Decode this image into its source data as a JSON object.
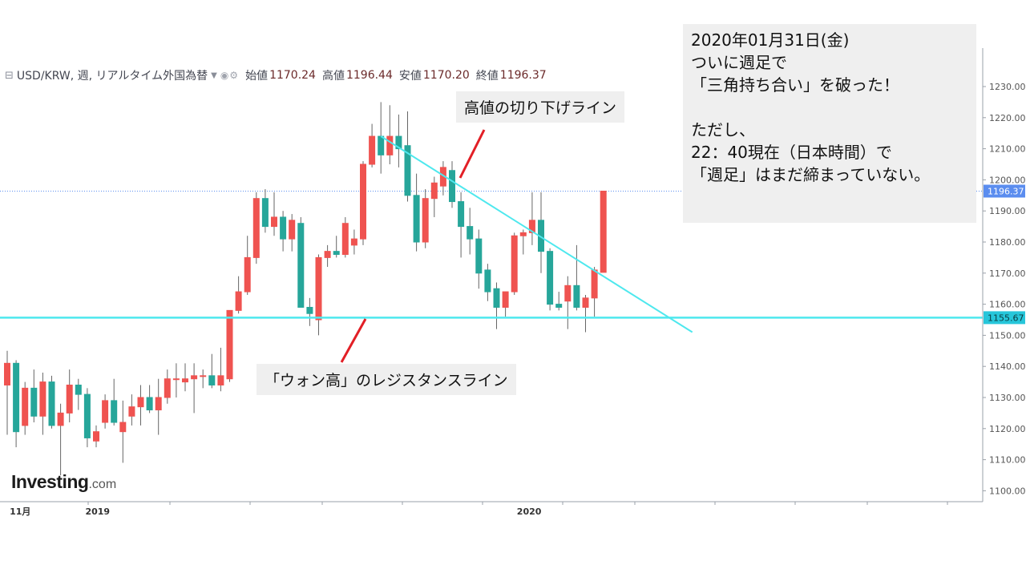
{
  "header": {
    "symbol_line": "USD/KRW, 週, リアルタイム外国為替",
    "ohlc": [
      {
        "label": "始値",
        "value": "1170.24"
      },
      {
        "label": "高値",
        "value": "1196.44"
      },
      {
        "label": "安値",
        "value": "1170.20"
      },
      {
        "label": "終値",
        "value": "1196.37"
      }
    ]
  },
  "annotations": {
    "downtrend_label": "高値の切り下げライン",
    "support_label": "「ウォン高」のレジスタンスライン"
  },
  "info_box": {
    "lines": [
      "2020年01月31日(金)",
      "ついに週足で",
      "「三角持ち合い」を破った！",
      "",
      "ただし、",
      "22：40現在（日本時間）で",
      "「週足」はまだ締まっていない。"
    ]
  },
  "logo": {
    "main": "Investing",
    "suffix": ".com"
  },
  "colors": {
    "up": "#ef5350",
    "down": "#26a69a",
    "trendline": "#4ee8ee",
    "horizontal_line": "#4ee8ee",
    "annotation_pointer": "#e21f26",
    "price_marker_current": "#5b8def",
    "price_marker_level": "#26c6da"
  },
  "chart_data": {
    "type": "candlestick",
    "symbol": "USD/KRW",
    "interval": "週",
    "ylim": [
      1095,
      1236
    ],
    "y_ticks": [
      1100,
      1110,
      1120,
      1130,
      1140,
      1150,
      1160,
      1170,
      1180,
      1190,
      1200,
      1210,
      1220,
      1230
    ],
    "x_tick_labels": [
      {
        "label": "11月",
        "index": 1
      },
      {
        "label": "2019",
        "index": 9.5
      },
      {
        "label": "2020",
        "index": 58
      }
    ],
    "current_price": "1196.37",
    "horizontal_level": "1155.67",
    "candles": [
      {
        "o": 1134,
        "h": 1145,
        "l": 1118,
        "c": 1141
      },
      {
        "o": 1141,
        "h": 1142,
        "l": 1114,
        "c": 1119
      },
      {
        "o": 1121,
        "h": 1135,
        "l": 1118,
        "c": 1133
      },
      {
        "o": 1133,
        "h": 1139,
        "l": 1122,
        "c": 1124
      },
      {
        "o": 1124,
        "h": 1138,
        "l": 1118,
        "c": 1135
      },
      {
        "o": 1135,
        "h": 1137,
        "l": 1120,
        "c": 1121
      },
      {
        "o": 1121,
        "h": 1128,
        "l": 1105,
        "c": 1125
      },
      {
        "o": 1125,
        "h": 1139,
        "l": 1122,
        "c": 1134
      },
      {
        "o": 1134,
        "h": 1136,
        "l": 1126,
        "c": 1131
      },
      {
        "o": 1131,
        "h": 1133,
        "l": 1114,
        "c": 1117
      },
      {
        "o": 1116,
        "h": 1121,
        "l": 1114,
        "c": 1119
      },
      {
        "o": 1122,
        "h": 1131,
        "l": 1120,
        "c": 1129
      },
      {
        "o": 1129,
        "h": 1136,
        "l": 1121,
        "c": 1122
      },
      {
        "o": 1119,
        "h": 1129,
        "l": 1109,
        "c": 1122
      },
      {
        "o": 1124,
        "h": 1131,
        "l": 1121,
        "c": 1127
      },
      {
        "o": 1127,
        "h": 1134,
        "l": 1121,
        "c": 1130
      },
      {
        "o": 1130,
        "h": 1134,
        "l": 1125,
        "c": 1126
      },
      {
        "o": 1126,
        "h": 1136,
        "l": 1118,
        "c": 1130
      },
      {
        "o": 1130,
        "h": 1139,
        "l": 1128,
        "c": 1136
      },
      {
        "o": 1136,
        "h": 1141,
        "l": 1130,
        "c": 1136
      },
      {
        "o": 1135,
        "h": 1141,
        "l": 1132,
        "c": 1136
      },
      {
        "o": 1136,
        "h": 1141,
        "l": 1125,
        "c": 1137
      },
      {
        "o": 1137,
        "h": 1139,
        "l": 1133,
        "c": 1137
      },
      {
        "o": 1137,
        "h": 1144,
        "l": 1133,
        "c": 1134
      },
      {
        "o": 1134,
        "h": 1146,
        "l": 1132,
        "c": 1137
      },
      {
        "o": 1136,
        "h": 1158,
        "l": 1135,
        "c": 1158
      },
      {
        "o": 1158,
        "h": 1169,
        "l": 1157,
        "c": 1164
      },
      {
        "o": 1164,
        "h": 1182,
        "l": 1163,
        "c": 1175
      },
      {
        "o": 1175,
        "h": 1196,
        "l": 1173,
        "c": 1194
      },
      {
        "o": 1194,
        "h": 1197,
        "l": 1183,
        "c": 1185
      },
      {
        "o": 1185,
        "h": 1196,
        "l": 1182,
        "c": 1188
      },
      {
        "o": 1188,
        "h": 1190,
        "l": 1177,
        "c": 1181
      },
      {
        "o": 1181,
        "h": 1189,
        "l": 1177,
        "c": 1187
      },
      {
        "o": 1186,
        "h": 1188,
        "l": 1159,
        "c": 1159
      },
      {
        "o": 1159,
        "h": 1162,
        "l": 1153,
        "c": 1157
      },
      {
        "o": 1155,
        "h": 1176,
        "l": 1150,
        "c": 1175
      },
      {
        "o": 1175,
        "h": 1179,
        "l": 1172,
        "c": 1177
      },
      {
        "o": 1177,
        "h": 1182,
        "l": 1175,
        "c": 1176
      },
      {
        "o": 1176,
        "h": 1188,
        "l": 1175,
        "c": 1186
      },
      {
        "o": 1179,
        "h": 1184,
        "l": 1176,
        "c": 1181
      },
      {
        "o": 1181,
        "h": 1206,
        "l": 1179,
        "c": 1205
      },
      {
        "o": 1205,
        "h": 1218,
        "l": 1204,
        "c": 1214
      },
      {
        "o": 1214,
        "h": 1225,
        "l": 1202,
        "c": 1208
      },
      {
        "o": 1208,
        "h": 1224,
        "l": 1205,
        "c": 1214
      },
      {
        "o": 1214,
        "h": 1221,
        "l": 1204,
        "c": 1210
      },
      {
        "o": 1211,
        "h": 1222,
        "l": 1193,
        "c": 1195
      },
      {
        "o": 1195,
        "h": 1202,
        "l": 1177,
        "c": 1180
      },
      {
        "o": 1180,
        "h": 1197,
        "l": 1178,
        "c": 1194
      },
      {
        "o": 1194,
        "h": 1201,
        "l": 1188,
        "c": 1199
      },
      {
        "o": 1198,
        "h": 1206,
        "l": 1195,
        "c": 1204
      },
      {
        "o": 1203,
        "h": 1206,
        "l": 1191,
        "c": 1193
      },
      {
        "o": 1193,
        "h": 1196,
        "l": 1175,
        "c": 1185
      },
      {
        "o": 1185,
        "h": 1191,
        "l": 1176,
        "c": 1181
      },
      {
        "o": 1181,
        "h": 1184,
        "l": 1165,
        "c": 1170
      },
      {
        "o": 1171,
        "h": 1173,
        "l": 1161,
        "c": 1164
      },
      {
        "o": 1165,
        "h": 1167,
        "l": 1152,
        "c": 1159
      },
      {
        "o": 1159,
        "h": 1164,
        "l": 1156,
        "c": 1164
      },
      {
        "o": 1164,
        "h": 1183,
        "l": 1163,
        "c": 1182
      },
      {
        "o": 1182,
        "h": 1184,
        "l": 1176,
        "c": 1183
      },
      {
        "o": 1183,
        "h": 1196,
        "l": 1179,
        "c": 1187
      },
      {
        "o": 1187,
        "h": 1196,
        "l": 1170,
        "c": 1177
      },
      {
        "o": 1177,
        "h": 1178,
        "l": 1158,
        "c": 1160
      },
      {
        "o": 1160,
        "h": 1164,
        "l": 1158,
        "c": 1159
      },
      {
        "o": 1161,
        "h": 1169,
        "l": 1152,
        "c": 1166
      },
      {
        "o": 1166,
        "h": 1179,
        "l": 1158,
        "c": 1159
      },
      {
        "o": 1159,
        "h": 1163,
        "l": 1151,
        "c": 1162
      },
      {
        "o": 1162,
        "h": 1172,
        "l": 1156,
        "c": 1171
      },
      {
        "o": 1170.24,
        "h": 1196.44,
        "l": 1170.2,
        "c": 1196.37
      }
    ],
    "trendlines": [
      {
        "name": "高値の切り下げライン",
        "from": {
          "index": 42,
          "price": 1214
        },
        "to": {
          "index": 77,
          "price": 1151
        }
      },
      {
        "name": "「ウォン高」のレジスタンスライン",
        "price": 1155.67
      }
    ]
  }
}
